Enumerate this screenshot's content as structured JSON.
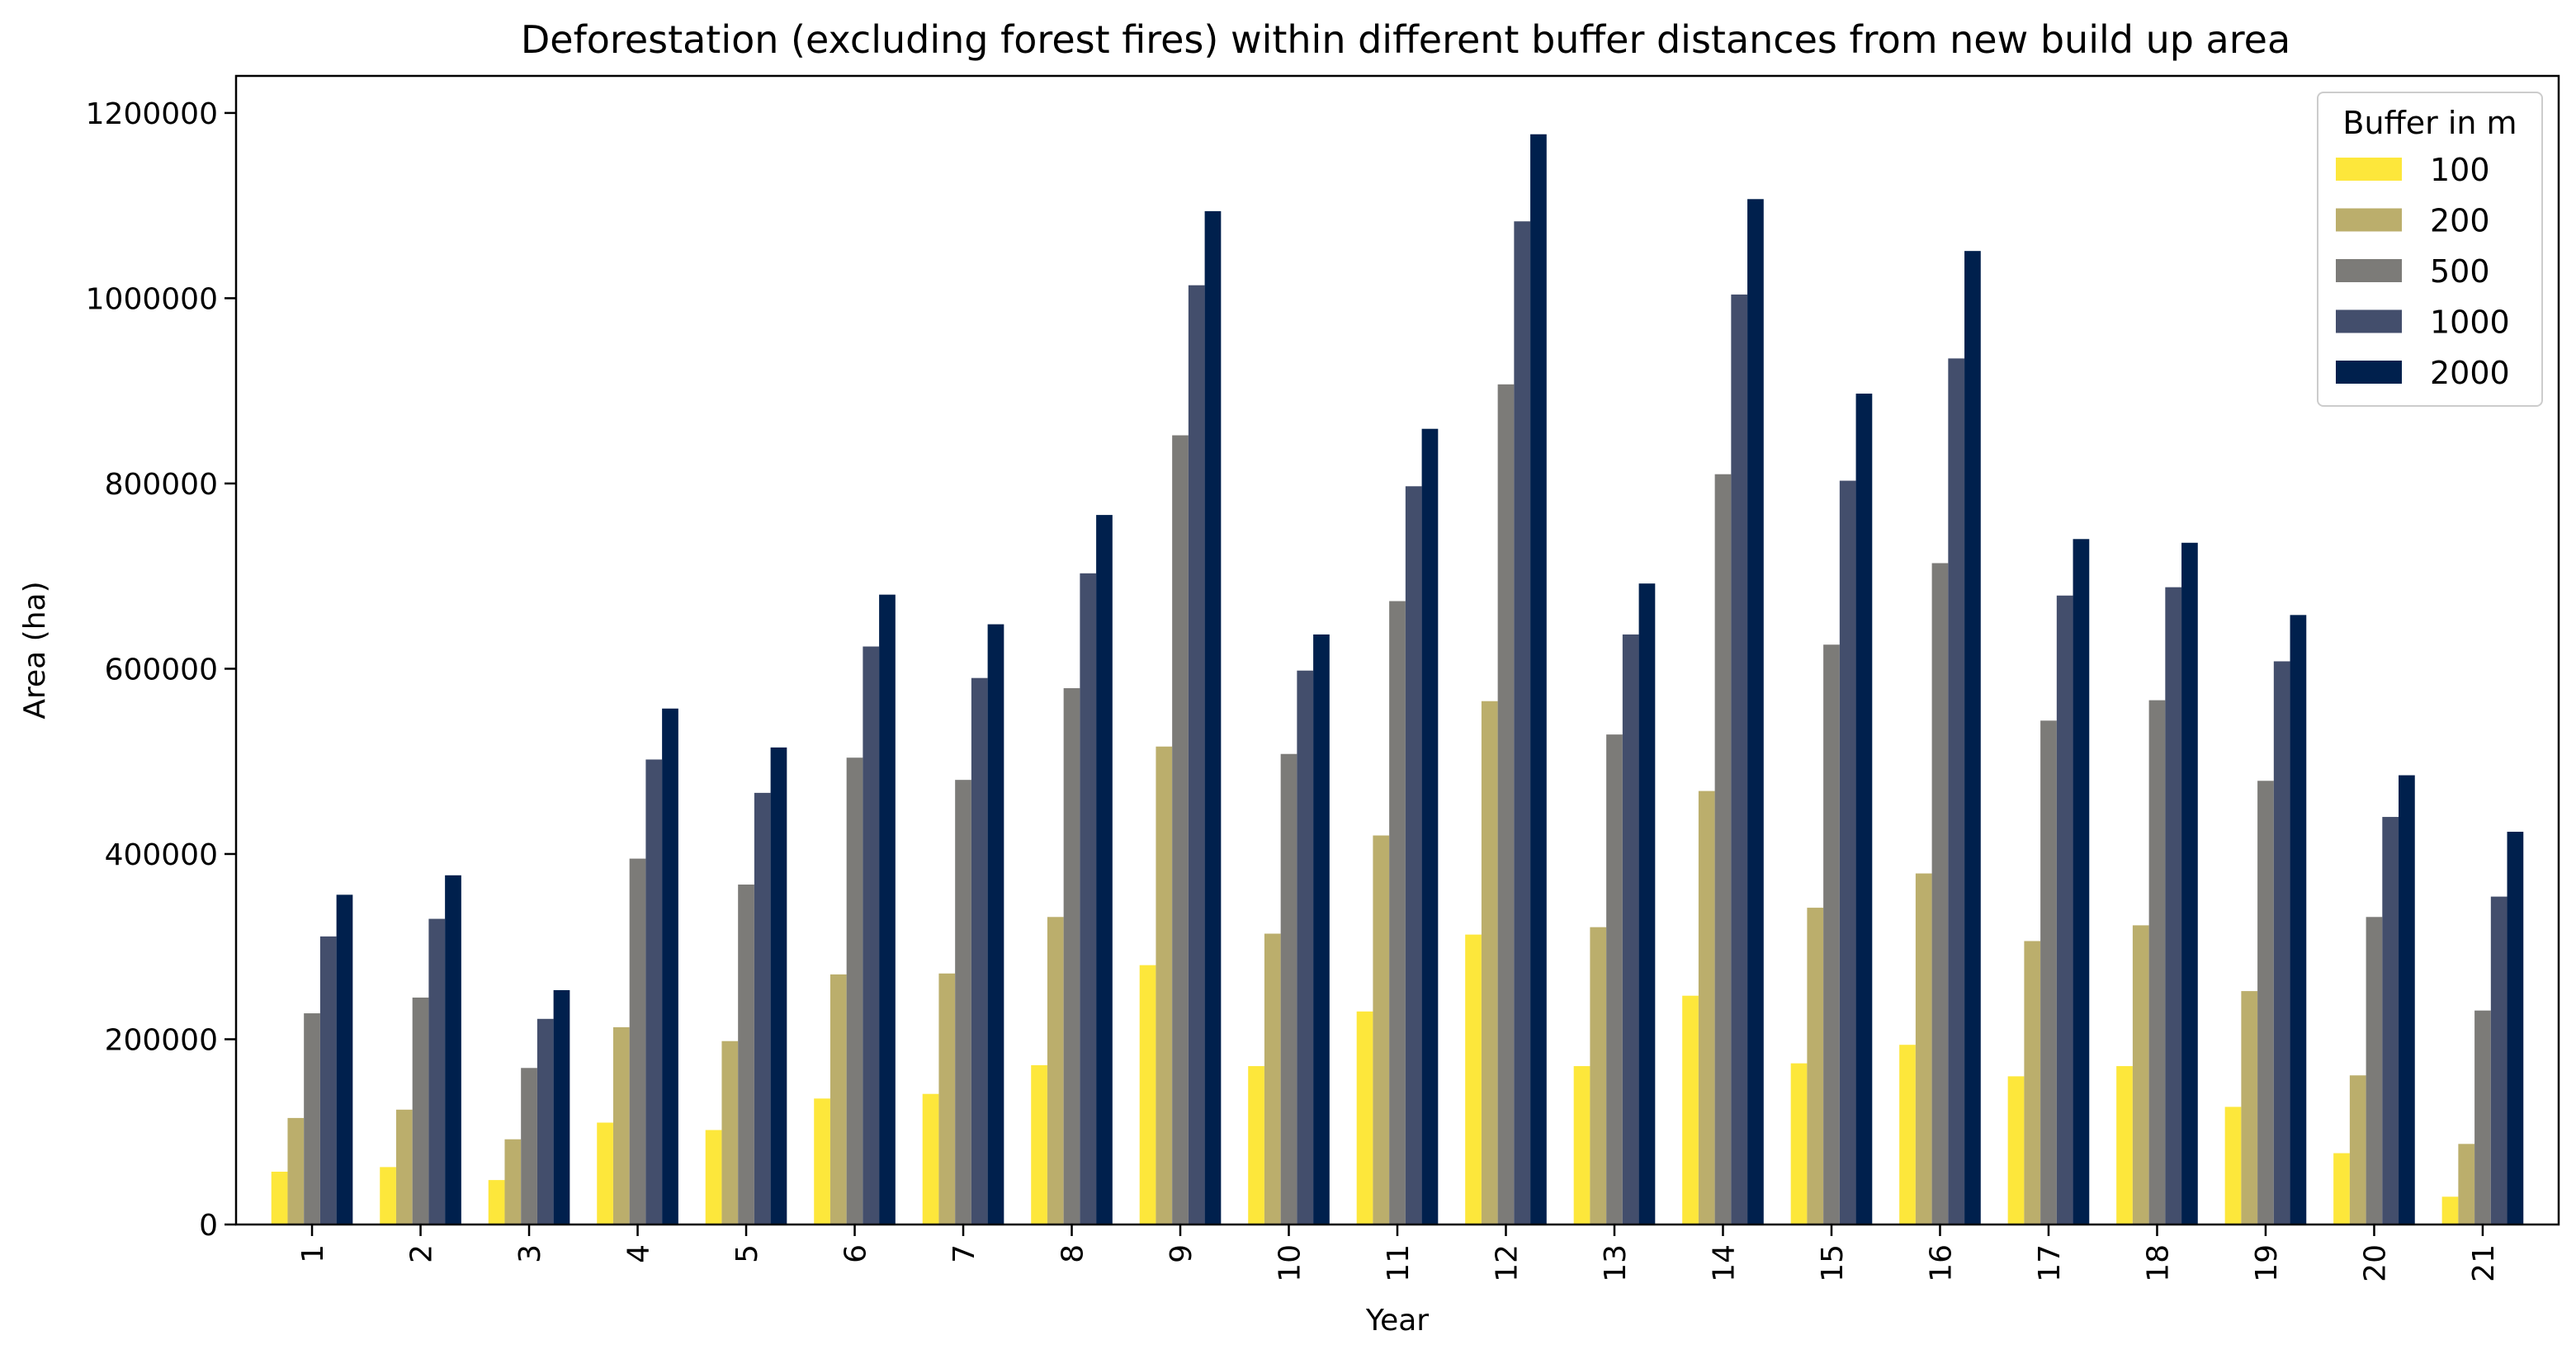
{
  "chart_data": {
    "type": "bar",
    "title": "Deforestation (excluding forest fires) within different buffer distances from new build up area",
    "xlabel": "Year",
    "ylabel": "Area (ha)",
    "ylim": [
      0,
      1240000
    ],
    "yticks": [
      0,
      200000,
      400000,
      600000,
      800000,
      1000000,
      1200000
    ],
    "ytick_labels": [
      "0",
      "200000",
      "400000",
      "600000",
      "800000",
      "1000000",
      "1200000"
    ],
    "categories": [
      "1",
      "2",
      "3",
      "4",
      "5",
      "6",
      "7",
      "8",
      "9",
      "10",
      "11",
      "12",
      "13",
      "14",
      "15",
      "16",
      "17",
      "18",
      "19",
      "20",
      "21"
    ],
    "legend": {
      "title": "Buffer in m",
      "position": "top-right"
    },
    "grid": false,
    "series": [
      {
        "name": "100",
        "color": "#FDE73B",
        "values": [
          57000,
          62000,
          48000,
          110000,
          102000,
          136000,
          141000,
          172000,
          280000,
          171000,
          230000,
          313000,
          171000,
          247000,
          174000,
          194000,
          160000,
          171000,
          127000,
          77000,
          30000
        ]
      },
      {
        "name": "200",
        "color": "#BBAE6C",
        "values": [
          115000,
          124000,
          92000,
          213000,
          198000,
          270000,
          271000,
          332000,
          516000,
          314000,
          420000,
          565000,
          321000,
          468000,
          342000,
          379000,
          306000,
          323000,
          252000,
          161000,
          87000
        ]
      },
      {
        "name": "500",
        "color": "#7C7B78",
        "values": [
          228000,
          245000,
          169000,
          395000,
          367000,
          504000,
          480000,
          579000,
          852000,
          508000,
          673000,
          907000,
          529000,
          810000,
          626000,
          714000,
          544000,
          566000,
          479000,
          332000,
          231000
        ]
      },
      {
        "name": "1000",
        "color": "#434E6C",
        "values": [
          311000,
          330000,
          222000,
          502000,
          466000,
          624000,
          590000,
          703000,
          1014000,
          598000,
          797000,
          1083000,
          637000,
          1004000,
          803000,
          935000,
          679000,
          688000,
          608000,
          440000,
          354000
        ]
      },
      {
        "name": "2000",
        "color": "#00204D",
        "values": [
          356000,
          377000,
          253000,
          557000,
          515000,
          680000,
          648000,
          766000,
          1094000,
          637000,
          859000,
          1177000,
          692000,
          1107000,
          897000,
          1051000,
          740000,
          736000,
          658000,
          485000,
          424000
        ]
      }
    ]
  }
}
